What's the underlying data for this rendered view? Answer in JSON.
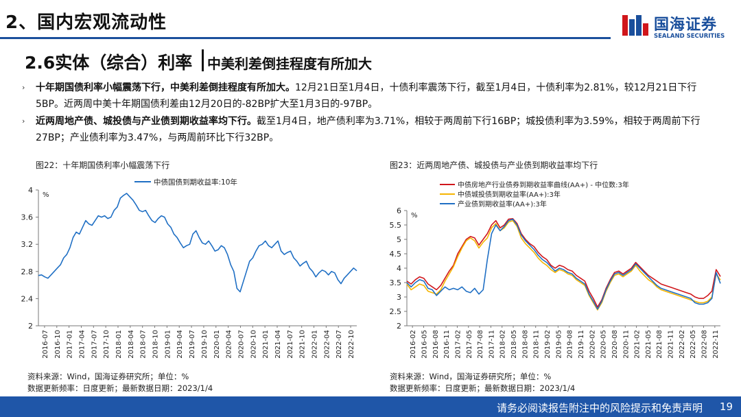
{
  "header": {
    "section_title": "2、国内宏观流动性",
    "logo_cn": "国海证券",
    "logo_en": "SEALAND SECURITIES"
  },
  "subtitle": {
    "left": "2.6实体（综合）利率",
    "right": "中美利差倒挂程度有所加大"
  },
  "bullets": [
    {
      "bold": "十年期国债利率小幅震荡下行，中美利差倒挂程度有所加大。",
      "text": "12月21日至1月4日，十债利率震荡下行，截至1月4日，十债利率为2.81%，较12月21日下行5BP。近两周中美十年期国债利差由12月20日的-82BP扩大至1月3日的-97BP。"
    },
    {
      "bold": "近两周地产债、城投债与产业债到期收益率均下行。",
      "text": "截至1月4日，地产债利率为3.71%，相较于两周前下行16BP；城投债利率为3.59%，相较于两周前下行27BP；产业债利率为3.47%，与两周前环比下行32BP。"
    }
  ],
  "figures": [
    {
      "title": "图22：十年期国债利率小幅震荡下行",
      "source_line1": "资料来源：Wind，国海证券研究所；单位：%",
      "source_line2": "数据更新频率：日度更新；最新数据日期：2023/1/4"
    },
    {
      "title": "图23：近两周地产债、城投债与产业债到期收益率均下行",
      "source_line1": "资料来源：Wind，国海证券研究所；单位：%",
      "source_line2": "数据更新频率：日度更新；最新数据日期：2023/1/4"
    }
  ],
  "chart_data": [
    {
      "type": "line",
      "unit_label": "%",
      "ylim": [
        2,
        4
      ],
      "yticks": [
        "2",
        "2.4",
        "2.8",
        "3.2",
        "3.6",
        "4"
      ],
      "xticks": [
        "2016-07",
        "2016-10",
        "2017-01",
        "2017-04",
        "2017-07",
        "2017-10",
        "2018-01",
        "2018-04",
        "2018-07",
        "2018-10",
        "2019-01",
        "2019-04",
        "2019-07",
        "2019-10",
        "2020-01",
        "2020-04",
        "2020-07",
        "2020-10",
        "2021-01",
        "2021-04",
        "2021-07",
        "2021-10",
        "2022-01",
        "2022-04",
        "2022-07",
        "2022-10"
      ],
      "legend_position": "top-center",
      "series": [
        {
          "name": "中债国债到期收益率:10年",
          "color": "#1f6fc4",
          "values": [
            2.74,
            2.75,
            2.72,
            2.7,
            2.75,
            2.8,
            2.85,
            2.9,
            3.0,
            3.05,
            3.15,
            3.3,
            3.38,
            3.35,
            3.45,
            3.55,
            3.5,
            3.48,
            3.55,
            3.62,
            3.6,
            3.62,
            3.58,
            3.6,
            3.7,
            3.75,
            3.88,
            3.92,
            3.95,
            3.9,
            3.85,
            3.78,
            3.7,
            3.68,
            3.7,
            3.62,
            3.55,
            3.52,
            3.58,
            3.62,
            3.6,
            3.5,
            3.45,
            3.35,
            3.3,
            3.22,
            3.15,
            3.18,
            3.2,
            3.35,
            3.4,
            3.3,
            3.22,
            3.2,
            3.25,
            3.18,
            3.1,
            3.12,
            3.18,
            3.15,
            3.05,
            2.9,
            2.8,
            2.55,
            2.5,
            2.65,
            2.8,
            2.95,
            3.0,
            3.1,
            3.18,
            3.2,
            3.25,
            3.18,
            3.15,
            3.2,
            3.25,
            3.1,
            3.05,
            3.08,
            3.1,
            3.0,
            2.95,
            2.88,
            2.92,
            2.95,
            2.85,
            2.8,
            2.72,
            2.78,
            2.82,
            2.8,
            2.75,
            2.8,
            2.78,
            2.68,
            2.62,
            2.7,
            2.75,
            2.8,
            2.85,
            2.81
          ]
        }
      ]
    },
    {
      "type": "line",
      "unit_label": "%",
      "ylim": [
        2,
        6
      ],
      "yticks": [
        "2",
        "2.5",
        "3",
        "3.5",
        "4",
        "4.5",
        "5",
        "5.5",
        "6"
      ],
      "xticks": [
        "2016-02",
        "2016-05",
        "2016-08",
        "2016-11",
        "2017-02",
        "2017-05",
        "2017-08",
        "2017-11",
        "2018-02",
        "2018-05",
        "2018-08",
        "2018-11",
        "2019-02",
        "2019-05",
        "2019-08",
        "2019-11",
        "2020-02",
        "2020-05",
        "2020-08",
        "2020-11",
        "2021-02",
        "2021-05",
        "2021-08",
        "2021-11",
        "2022-02",
        "2022-05",
        "2022-08",
        "2022-11"
      ],
      "legend_position": "top-center",
      "series": [
        {
          "name": "中债房地产行业债券到期收益率曲线(AA+) - 中位数:3年",
          "color": "#d0161b",
          "values": [
            3.55,
            3.45,
            3.6,
            3.7,
            3.65,
            3.45,
            3.35,
            3.25,
            3.4,
            3.65,
            3.9,
            4.1,
            4.5,
            4.75,
            5.0,
            5.1,
            5.05,
            4.8,
            5.0,
            5.2,
            5.5,
            5.65,
            5.4,
            5.5,
            5.7,
            5.72,
            5.55,
            5.2,
            5.0,
            4.85,
            4.75,
            4.55,
            4.4,
            4.3,
            4.1,
            4.0,
            4.1,
            4.05,
            3.95,
            3.9,
            3.75,
            3.65,
            3.55,
            3.2,
            2.95,
            2.65,
            2.9,
            3.3,
            3.6,
            3.85,
            3.9,
            3.8,
            3.9,
            4.0,
            4.2,
            4.05,
            3.9,
            3.75,
            3.65,
            3.55,
            3.45,
            3.4,
            3.35,
            3.3,
            3.25,
            3.2,
            3.15,
            3.1,
            3.0,
            2.95,
            2.95,
            3.05,
            3.2,
            3.95,
            3.71
          ]
        },
        {
          "name": "中债城投债到期收益率(AA+):3年",
          "color": "#f5b400",
          "values": [
            3.45,
            3.25,
            3.35,
            3.45,
            3.4,
            3.2,
            3.15,
            3.1,
            3.25,
            3.55,
            3.8,
            4.05,
            4.4,
            4.7,
            4.95,
            5.05,
            4.95,
            4.7,
            4.9,
            5.05,
            5.4,
            5.55,
            5.3,
            5.4,
            5.6,
            5.65,
            5.45,
            5.05,
            4.85,
            4.7,
            4.55,
            4.35,
            4.2,
            4.1,
            3.95,
            3.85,
            3.95,
            3.9,
            3.8,
            3.75,
            3.6,
            3.5,
            3.4,
            3.05,
            2.8,
            2.55,
            2.8,
            3.2,
            3.5,
            3.75,
            3.8,
            3.7,
            3.8,
            3.9,
            4.1,
            3.9,
            3.75,
            3.6,
            3.5,
            3.35,
            3.25,
            3.2,
            3.15,
            3.1,
            3.05,
            3.0,
            2.95,
            2.9,
            2.85,
            2.8,
            2.8,
            2.85,
            3.0,
            3.8,
            3.59
          ]
        },
        {
          "name": "产业债到期收益率(AA+):3年",
          "color": "#1f6fc4",
          "values": [
            3.5,
            3.35,
            3.5,
            3.6,
            3.55,
            3.3,
            3.25,
            3.05,
            3.2,
            3.35,
            3.25,
            3.3,
            3.25,
            3.35,
            3.2,
            3.15,
            3.3,
            3.1,
            3.25,
            4.3,
            5.2,
            5.5,
            5.3,
            5.45,
            5.65,
            5.7,
            5.5,
            5.15,
            4.95,
            4.8,
            4.65,
            4.45,
            4.3,
            4.2,
            4.05,
            3.9,
            4.0,
            3.95,
            3.85,
            3.8,
            3.65,
            3.55,
            3.45,
            3.1,
            2.85,
            2.58,
            2.85,
            3.25,
            3.55,
            3.8,
            3.85,
            3.75,
            3.85,
            3.95,
            4.15,
            4.0,
            3.85,
            3.7,
            3.55,
            3.4,
            3.3,
            3.25,
            3.2,
            3.15,
            3.1,
            3.05,
            3.0,
            2.95,
            2.8,
            2.75,
            2.75,
            2.8,
            2.95,
            3.85,
            3.47
          ]
        }
      ]
    }
  ],
  "footer": {
    "disclaimer": "请务必阅读报告附注中的风险提示和免责声明",
    "page_number": "19"
  }
}
